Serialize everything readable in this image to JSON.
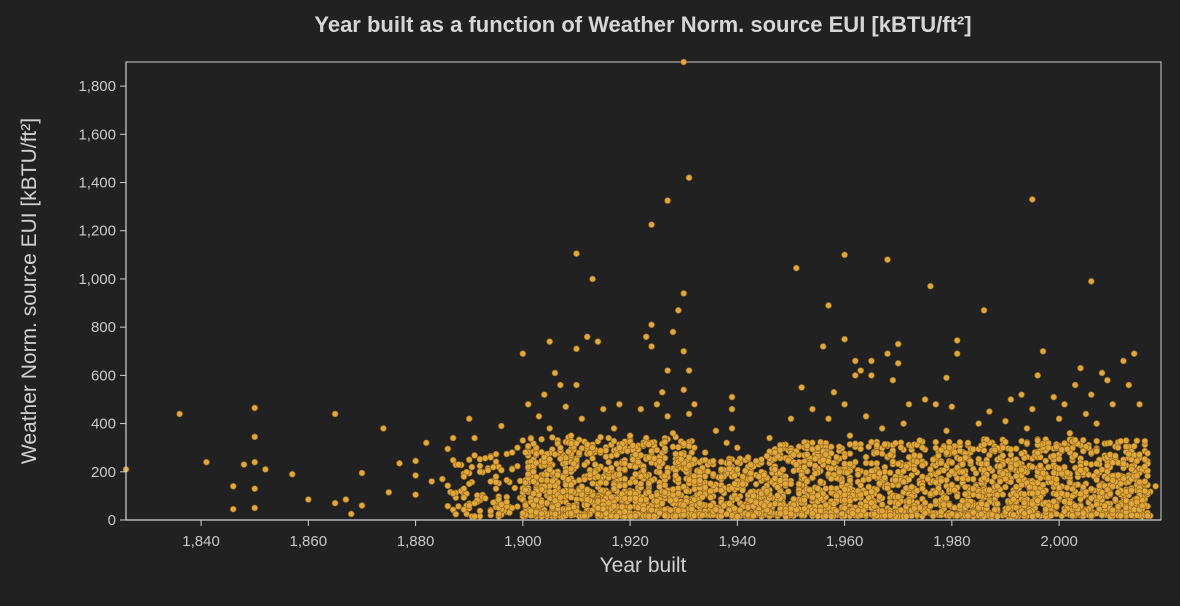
{
  "chart_data": {
    "type": "scatter",
    "title": "Year built as a function of Weather Norm. source EUI [kBTU/ft²]",
    "xlabel": "Year built",
    "ylabel": "Weather Norm. source EUI [kBTU/ft²]",
    "xlim": [
      1826,
      2019
    ],
    "ylim": [
      0,
      1900
    ],
    "x_ticks": [
      1840,
      1860,
      1880,
      1900,
      1920,
      1940,
      1960,
      1980,
      2000
    ],
    "x_tick_labels": [
      "1,840",
      "1,860",
      "1,880",
      "1,900",
      "1,920",
      "1,940",
      "1,960",
      "1,980",
      "2,000"
    ],
    "y_ticks": [
      0,
      200,
      400,
      600,
      800,
      1000,
      1200,
      1400,
      1600,
      1800
    ],
    "y_tick_labels": [
      "0",
      "200",
      "400",
      "600",
      "800",
      "1,000",
      "1,200",
      "1,400",
      "1,600",
      "1,800"
    ],
    "grid": false,
    "marker_color": "#e0a83a",
    "dense_region_note_free": true,
    "points": [
      [
        1826,
        210
      ],
      [
        1836,
        440
      ],
      [
        1841,
        240
      ],
      [
        1846,
        140
      ],
      [
        1846,
        45
      ],
      [
        1848,
        230
      ],
      [
        1850,
        465
      ],
      [
        1850,
        345
      ],
      [
        1850,
        240
      ],
      [
        1850,
        130
      ],
      [
        1850,
        50
      ],
      [
        1852,
        210
      ],
      [
        1857,
        190
      ],
      [
        1860,
        85
      ],
      [
        1865,
        440
      ],
      [
        1865,
        70
      ],
      [
        1867,
        85
      ],
      [
        1868,
        25
      ],
      [
        1870,
        195
      ],
      [
        1870,
        60
      ],
      [
        1874,
        380
      ],
      [
        1875,
        115
      ],
      [
        1877,
        235
      ],
      [
        1880,
        245
      ],
      [
        1880,
        185
      ],
      [
        1880,
        105
      ],
      [
        1882,
        320
      ],
      [
        1883,
        160
      ],
      [
        1885,
        170
      ],
      [
        1886,
        295
      ],
      [
        1887,
        340
      ],
      [
        1887,
        110
      ],
      [
        1888,
        230
      ],
      [
        1889,
        180
      ],
      [
        1889,
        130
      ],
      [
        1890,
        420
      ],
      [
        1890,
        250
      ],
      [
        1890,
        150
      ],
      [
        1890,
        60
      ],
      [
        1891,
        340
      ],
      [
        1892,
        200
      ],
      [
        1893,
        90
      ],
      [
        1894,
        260
      ],
      [
        1895,
        180
      ],
      [
        1895,
        130
      ],
      [
        1896,
        390
      ],
      [
        1897,
        75
      ],
      [
        1898,
        280
      ],
      [
        1898,
        210
      ],
      [
        1898,
        50
      ],
      [
        1899,
        300
      ],
      [
        1900,
        690
      ],
      [
        1900,
        330
      ],
      [
        1901,
        480
      ],
      [
        1901,
        220
      ],
      [
        1902,
        160
      ],
      [
        1903,
        430
      ],
      [
        1904,
        520
      ],
      [
        1904,
        260
      ],
      [
        1905,
        740
      ],
      [
        1905,
        380
      ],
      [
        1906,
        80
      ],
      [
        1906,
        610
      ],
      [
        1907,
        560
      ],
      [
        1907,
        300
      ],
      [
        1908,
        470
      ],
      [
        1908,
        200
      ],
      [
        1909,
        350
      ],
      [
        1909,
        120
      ],
      [
        1910,
        1105
      ],
      [
        1910,
        710
      ],
      [
        1910,
        560
      ],
      [
        1911,
        420
      ],
      [
        1912,
        760
      ],
      [
        1913,
        1000
      ],
      [
        1913,
        300
      ],
      [
        1914,
        740
      ],
      [
        1914,
        180
      ],
      [
        1915,
        460
      ],
      [
        1916,
        240
      ],
      [
        1917,
        380
      ],
      [
        1917,
        130
      ],
      [
        1918,
        300
      ],
      [
        1918,
        480
      ],
      [
        1919,
        90
      ],
      [
        1920,
        350
      ],
      [
        1921,
        220
      ],
      [
        1922,
        460
      ],
      [
        1922,
        150
      ],
      [
        1923,
        760
      ],
      [
        1924,
        1225
      ],
      [
        1924,
        810
      ],
      [
        1924,
        720
      ],
      [
        1925,
        480
      ],
      [
        1925,
        290
      ],
      [
        1926,
        530
      ],
      [
        1927,
        1325
      ],
      [
        1927,
        620
      ],
      [
        1927,
        430
      ],
      [
        1928,
        780
      ],
      [
        1928,
        360
      ],
      [
        1929,
        870
      ],
      [
        1930,
        1900
      ],
      [
        1930,
        940
      ],
      [
        1930,
        700
      ],
      [
        1930,
        540
      ],
      [
        1931,
        1420
      ],
      [
        1931,
        620
      ],
      [
        1931,
        440
      ],
      [
        1932,
        300
      ],
      [
        1932,
        480
      ],
      [
        1933,
        200
      ],
      [
        1934,
        280
      ],
      [
        1935,
        120
      ],
      [
        1936,
        370
      ],
      [
        1937,
        210
      ],
      [
        1938,
        320
      ],
      [
        1939,
        510
      ],
      [
        1939,
        460
      ],
      [
        1939,
        380
      ],
      [
        1940,
        300
      ],
      [
        1940,
        240
      ],
      [
        1941,
        150
      ],
      [
        1942,
        260
      ],
      [
        1943,
        100
      ],
      [
        1944,
        180
      ],
      [
        1945,
        60
      ],
      [
        1946,
        340
      ],
      [
        1947,
        210
      ],
      [
        1948,
        290
      ],
      [
        1949,
        150
      ],
      [
        1950,
        420
      ],
      [
        1951,
        1045
      ],
      [
        1951,
        230
      ],
      [
        1952,
        550
      ],
      [
        1953,
        160
      ],
      [
        1954,
        460
      ],
      [
        1955,
        300
      ],
      [
        1956,
        720
      ],
      [
        1957,
        890
      ],
      [
        1957,
        420
      ],
      [
        1958,
        530
      ],
      [
        1959,
        200
      ],
      [
        1960,
        1100
      ],
      [
        1960,
        750
      ],
      [
        1960,
        480
      ],
      [
        1961,
        350
      ],
      [
        1962,
        660
      ],
      [
        1962,
        600
      ],
      [
        1963,
        620
      ],
      [
        1964,
        430
      ],
      [
        1965,
        600
      ],
      [
        1965,
        660
      ],
      [
        1966,
        280
      ],
      [
        1967,
        380
      ],
      [
        1968,
        1080
      ],
      [
        1968,
        690
      ],
      [
        1969,
        580
      ],
      [
        1970,
        730
      ],
      [
        1970,
        650
      ],
      [
        1971,
        400
      ],
      [
        1972,
        480
      ],
      [
        1973,
        210
      ],
      [
        1974,
        330
      ],
      [
        1975,
        500
      ],
      [
        1976,
        970
      ],
      [
        1977,
        480
      ],
      [
        1978,
        290
      ],
      [
        1979,
        590
      ],
      [
        1979,
        370
      ],
      [
        1980,
        470
      ],
      [
        1981,
        745
      ],
      [
        1981,
        690
      ],
      [
        1982,
        200
      ],
      [
        1983,
        320
      ],
      [
        1984,
        130
      ],
      [
        1985,
        400
      ],
      [
        1986,
        870
      ],
      [
        1987,
        450
      ],
      [
        1988,
        290
      ],
      [
        1989,
        160
      ],
      [
        1990,
        410
      ],
      [
        1991,
        500
      ],
      [
        1992,
        230
      ],
      [
        1993,
        520
      ],
      [
        1994,
        380
      ],
      [
        1995,
        1330
      ],
      [
        1995,
        460
      ],
      [
        1996,
        600
      ],
      [
        1997,
        700
      ],
      [
        1998,
        300
      ],
      [
        1999,
        510
      ],
      [
        2000,
        420
      ],
      [
        2001,
        480
      ],
      [
        2002,
        360
      ],
      [
        2003,
        560
      ],
      [
        2004,
        630
      ],
      [
        2005,
        440
      ],
      [
        2006,
        990
      ],
      [
        2006,
        520
      ],
      [
        2007,
        400
      ],
      [
        2008,
        610
      ],
      [
        2009,
        580
      ],
      [
        2010,
        480
      ],
      [
        2011,
        300
      ],
      [
        2012,
        660
      ],
      [
        2013,
        560
      ],
      [
        2014,
        690
      ],
      [
        2015,
        480
      ],
      [
        2016,
        120
      ],
      [
        2018,
        140
      ]
    ]
  }
}
